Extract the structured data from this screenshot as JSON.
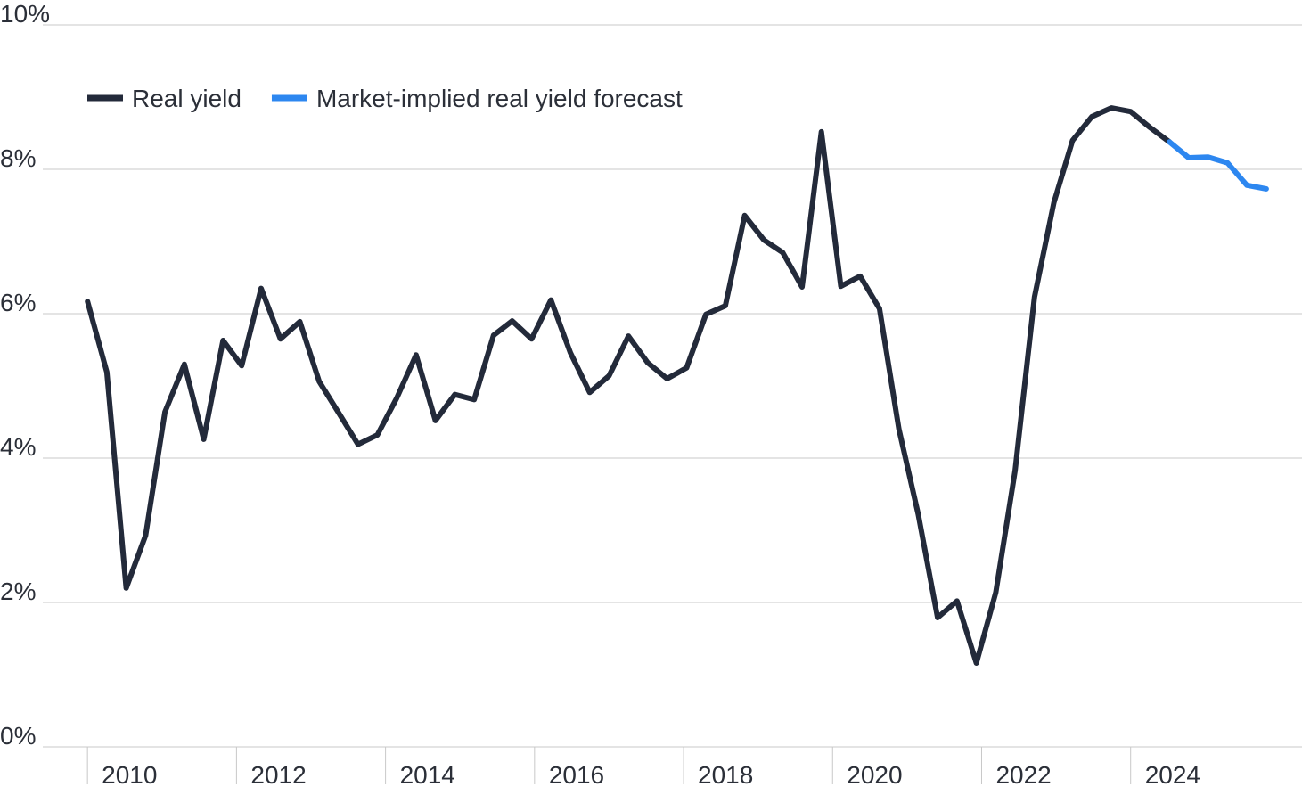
{
  "chart_data": {
    "type": "line",
    "x": [
      2010.0,
      2010.26,
      2010.52,
      2010.78,
      2011.04,
      2011.3,
      2011.56,
      2011.82,
      2012.07,
      2012.33,
      2012.59,
      2012.85,
      2013.11,
      2013.37,
      2013.63,
      2013.89,
      2014.15,
      2014.41,
      2014.67,
      2014.93,
      2015.19,
      2015.45,
      2015.7,
      2015.96,
      2016.22,
      2016.48,
      2016.74,
      2017.0,
      2017.26,
      2017.52,
      2017.78,
      2018.04,
      2018.3,
      2018.56,
      2018.82,
      2019.08,
      2019.33,
      2019.59,
      2019.85,
      2020.11,
      2020.37,
      2020.63,
      2020.89,
      2021.15,
      2021.41,
      2021.67,
      2021.93,
      2022.19,
      2022.45,
      2022.71,
      2022.97,
      2023.22,
      2023.48,
      2023.74,
      2024.0,
      2024.26,
      2024.52,
      2024.78,
      2025.04,
      2025.3,
      2025.56,
      2025.82
    ],
    "series": [
      {
        "name": "Real yield",
        "color": "#232a3a",
        "values": [
          6.17,
          5.19,
          2.2,
          2.93,
          4.64,
          5.3,
          4.26,
          5.63,
          5.28,
          6.35,
          5.65,
          5.89,
          5.06,
          4.63,
          4.19,
          4.32,
          4.83,
          5.43,
          4.52,
          4.88,
          4.81,
          5.7,
          5.9,
          5.65,
          6.19,
          5.46,
          4.91,
          5.14,
          5.69,
          5.32,
          5.1,
          5.25,
          5.99,
          6.11,
          7.36,
          7.02,
          6.85,
          6.37,
          8.52,
          6.38,
          6.52,
          6.07,
          4.4,
          3.22,
          1.79,
          2.02,
          1.16,
          2.14,
          3.83,
          6.23,
          7.54,
          8.4,
          8.73,
          8.85,
          8.8,
          8.58,
          8.38,
          null,
          null,
          null,
          null,
          null
        ]
      },
      {
        "name": "Market-implied real yield forecast",
        "color": "#2d87f0",
        "values": [
          null,
          null,
          null,
          null,
          null,
          null,
          null,
          null,
          null,
          null,
          null,
          null,
          null,
          null,
          null,
          null,
          null,
          null,
          null,
          null,
          null,
          null,
          null,
          null,
          null,
          null,
          null,
          null,
          null,
          null,
          null,
          null,
          null,
          null,
          null,
          null,
          null,
          null,
          null,
          null,
          null,
          null,
          null,
          null,
          null,
          null,
          null,
          null,
          null,
          null,
          null,
          null,
          null,
          null,
          null,
          null,
          8.38,
          8.16,
          8.17,
          8.09,
          7.78,
          7.73
        ]
      }
    ],
    "xlim": [
      2009.4,
      2026.3
    ],
    "xticks": [
      2010,
      2012,
      2014,
      2016,
      2018,
      2020,
      2022,
      2024
    ],
    "ylim": [
      0,
      10
    ],
    "yticks": [
      {
        "value": 0,
        "label": "0%"
      },
      {
        "value": 2,
        "label": "2%"
      },
      {
        "value": 4,
        "label": "4%"
      },
      {
        "value": 6,
        "label": "6%"
      },
      {
        "value": 8,
        "label": "8%"
      },
      {
        "value": 10,
        "label": "10%"
      }
    ],
    "grid": true,
    "legend": "upper left"
  }
}
